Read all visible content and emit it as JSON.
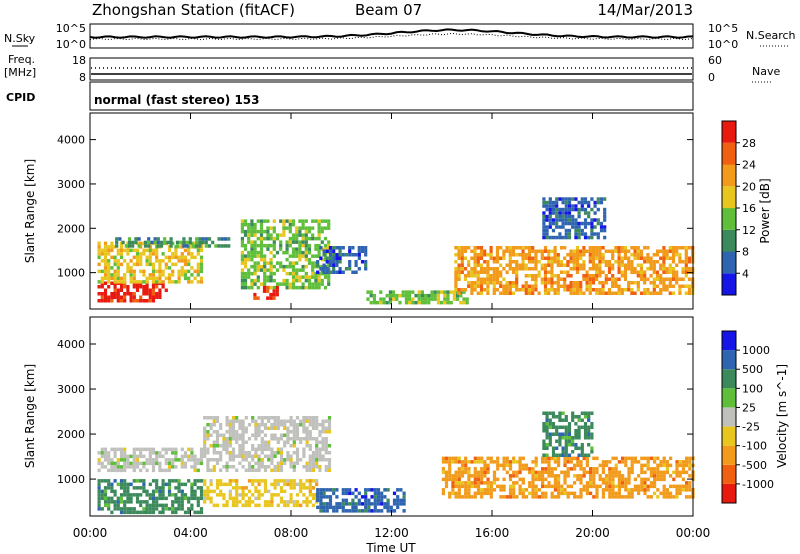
{
  "header": {
    "station": "Zhongshan Station (fitACF)",
    "beam": "Beam 07",
    "date": "14/Mar/2013"
  },
  "noise_panel": {
    "left_label": "N.Sky",
    "right_label": "N.Search",
    "left_ticks": [
      "10^5",
      "10^0"
    ],
    "right_ticks": [
      "10^5",
      "10^0"
    ]
  },
  "freq_panel": {
    "left_label_line1": "Freq.",
    "left_label_line2": "[MHz]",
    "right_label": "Nave",
    "left_ticks": [
      "18",
      "8"
    ],
    "right_ticks": [
      "60",
      "0"
    ]
  },
  "cpid": {
    "label": "CPID",
    "text": "normal (fast stereo) 153"
  },
  "colors": {
    "power": [
      "#1515e8",
      "#2e64b0",
      "#3c8a5c",
      "#5fbf3a",
      "#e8c61e",
      "#f29a1a",
      "#f06010",
      "#e81a10"
    ],
    "velocity": [
      "#e81a10",
      "#f06010",
      "#f29a1a",
      "#e8c61e",
      "#c0c0bc",
      "#5fbf3a",
      "#3c8a5c",
      "#2e64b0",
      "#1515e8"
    ]
  },
  "chart_data": [
    {
      "type": "heatmap",
      "panel": "power",
      "ylabel": "Slant Range [km]",
      "yticks": [
        "1000",
        "2000",
        "3000",
        "4000"
      ],
      "ylim": [
        180,
        4600
      ],
      "xlim": [
        0,
        24
      ],
      "colorbar": {
        "label": "Power [dB]",
        "ticks": [
          "4",
          "8",
          "12",
          "16",
          "20",
          "24",
          "28"
        ],
        "range": [
          0,
          32
        ]
      },
      "regions": [
        {
          "t": [
            0.3,
            3.0
          ],
          "r": [
            350,
            800
          ],
          "value": 28
        },
        {
          "t": [
            0.3,
            4.5
          ],
          "r": [
            800,
            1700
          ],
          "value": 16
        },
        {
          "t": [
            1.0,
            5.5
          ],
          "r": [
            1600,
            1800
          ],
          "value": 10
        },
        {
          "t": [
            6.0,
            9.5
          ],
          "r": [
            700,
            2200
          ],
          "value": 12
        },
        {
          "t": [
            6.5,
            7.5
          ],
          "r": [
            400,
            700
          ],
          "value": 28
        },
        {
          "t": [
            9.0,
            11.0
          ],
          "r": [
            1000,
            1600
          ],
          "value": 6
        },
        {
          "t": [
            11.0,
            15.0
          ],
          "r": [
            300,
            600
          ],
          "value": 14
        },
        {
          "t": [
            14.5,
            24.0
          ],
          "r": [
            500,
            1600
          ],
          "value": 22
        },
        {
          "t": [
            18.0,
            20.5
          ],
          "r": [
            1800,
            2700
          ],
          "value": 6
        }
      ]
    },
    {
      "type": "heatmap",
      "panel": "velocity",
      "ylabel": "Slant Range [km]",
      "yticks": [
        "1000",
        "2000",
        "3000",
        "4000"
      ],
      "ylim": [
        180,
        4600
      ],
      "xlim": [
        0,
        24
      ],
      "xlabel": "Time UT",
      "xticks": [
        "00:00",
        "04:00",
        "08:00",
        "12:00",
        "16:00",
        "20:00",
        "00:00"
      ],
      "colorbar": {
        "label": "Velocity [m s^-1]",
        "ticks": [
          "1000",
          "500",
          "100",
          "25",
          "-25",
          "-100",
          "-500",
          "-1000"
        ]
      },
      "regions": [
        {
          "t": [
            0.3,
            4.5
          ],
          "r": [
            300,
            1000
          ],
          "value": 100
        },
        {
          "t": [
            0.3,
            4.5
          ],
          "r": [
            1200,
            1700
          ],
          "value": 0
        },
        {
          "t": [
            4.5,
            9.5
          ],
          "r": [
            1200,
            2400
          ],
          "value": 0
        },
        {
          "t": [
            4.5,
            9.0
          ],
          "r": [
            400,
            1000
          ],
          "value": -100
        },
        {
          "t": [
            9.0,
            12.5
          ],
          "r": [
            300,
            800
          ],
          "value": 500
        },
        {
          "t": [
            14.0,
            24.0
          ],
          "r": [
            600,
            1500
          ],
          "value": -300
        },
        {
          "t": [
            18.0,
            20.0
          ],
          "r": [
            1500,
            2500
          ],
          "value": 100
        }
      ]
    }
  ]
}
